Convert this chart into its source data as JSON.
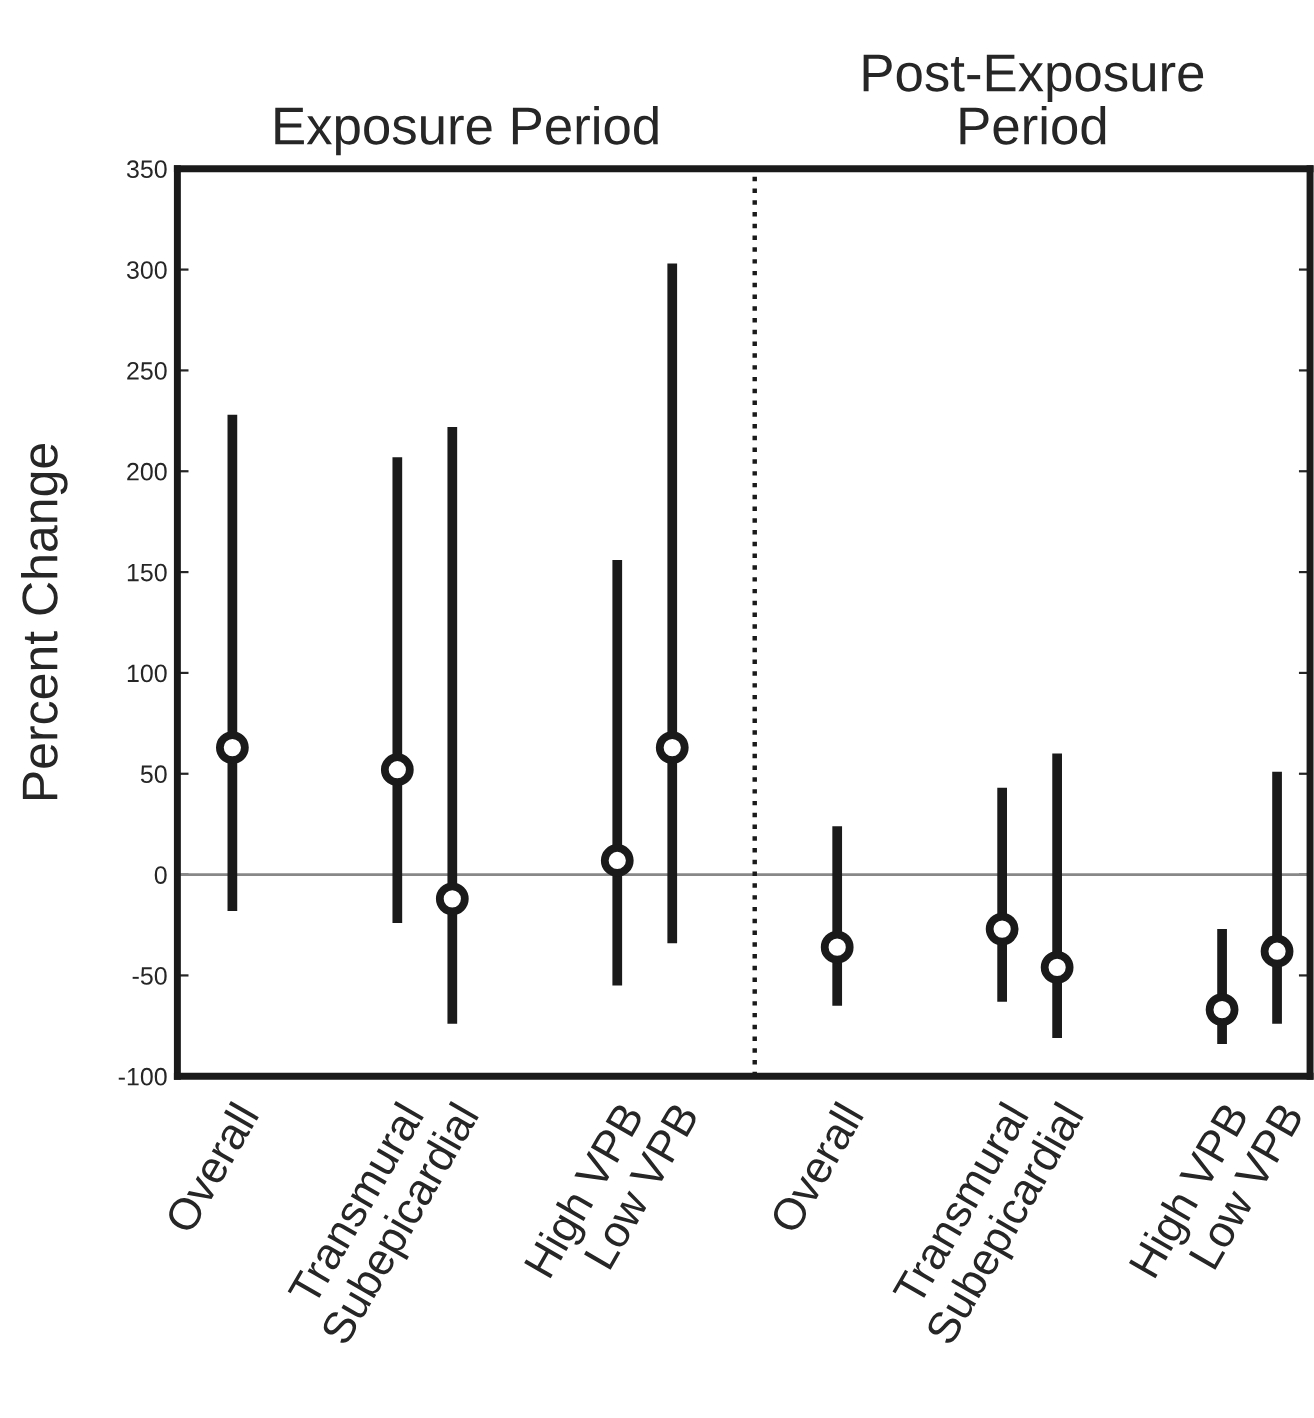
{
  "chart_data": {
    "type": "scatter",
    "ylabel": "Percent Change",
    "annotations": [
      "Exposure Period",
      "Post-Exposure\nPeriod"
    ],
    "categories": [
      "Overall",
      null,
      null,
      "Transmural",
      "Subepicardial",
      null,
      null,
      "High VPB",
      "Low VPB",
      null,
      null,
      "Overall",
      null,
      null,
      "Transmural",
      "Subepicardial",
      null,
      null,
      "High VPB",
      "Low VPB"
    ],
    "series": [
      {
        "color": "#1a1a1a",
        "values": [
          63,
          null,
          null,
          52,
          -12,
          null,
          null,
          7,
          63,
          null,
          null,
          -36,
          null,
          null,
          -27,
          -46,
          null,
          null,
          -67,
          -38
        ],
        "errors": [
          [
            -18,
            228
          ],
          null,
          null,
          [
            -24,
            207
          ],
          [
            -74,
            222
          ],
          null,
          null,
          [
            -55,
            156
          ],
          [
            -34,
            303
          ],
          null,
          null,
          [
            -65,
            24
          ],
          null,
          null,
          [
            -63,
            43
          ],
          [
            -81,
            60
          ],
          null,
          null,
          [
            -84,
            -27
          ],
          [
            -74,
            51
          ]
        ]
      }
    ],
    "ylim": [
      -100,
      350
    ],
    "yticks": [
      -100,
      -50,
      0,
      50,
      100,
      150,
      200,
      250,
      300,
      350
    ],
    "ref_lines": [
      {
        "axis": "y",
        "value": 0,
        "color": "#888888",
        "line_style": "solid"
      }
    ],
    "marker": "circle",
    "grid": false,
    "legend": false
  }
}
